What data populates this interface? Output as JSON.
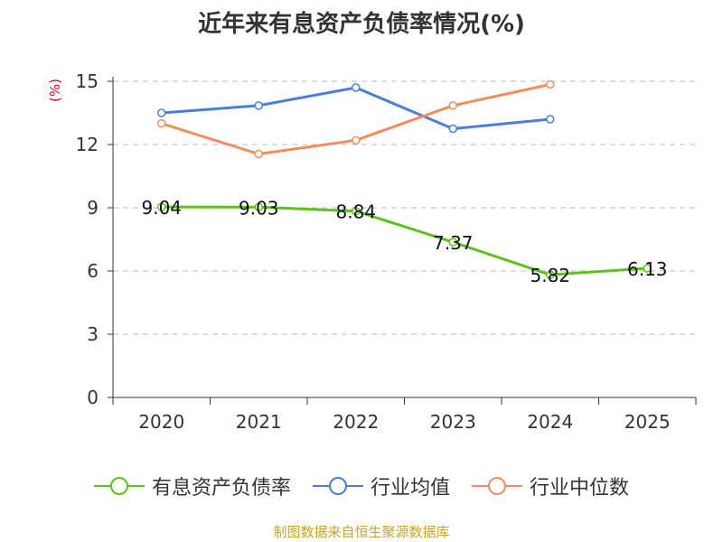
{
  "chart_data": {
    "type": "line",
    "title": "近年来有息资产负债率情况(%)",
    "ylabel": "(%)",
    "xlabel": "",
    "categories": [
      "2020",
      "2021",
      "2022",
      "2023",
      "2024",
      "2025"
    ],
    "ylim": [
      0,
      15
    ],
    "yticks": [
      0,
      3,
      6,
      9,
      12,
      15
    ],
    "grid": true,
    "legend_position": "bottom",
    "series": [
      {
        "name": "有息资产负债率",
        "color": "#5cc21e",
        "values": [
          9.04,
          9.03,
          8.84,
          7.37,
          5.82,
          6.13
        ],
        "labels": [
          "9.04",
          "9.03",
          "8.84",
          "7.37",
          "5.82",
          "6.13"
        ]
      },
      {
        "name": "行业均值",
        "color": "#4a7fd9",
        "values": [
          13.5,
          13.85,
          14.7,
          12.75,
          13.2,
          null
        ]
      },
      {
        "name": "行业中位数",
        "color": "#f28d5b",
        "values": [
          13.0,
          11.55,
          12.2,
          13.85,
          14.85,
          null
        ]
      }
    ]
  },
  "footer": {
    "source": "制图数据来自恒生聚源数据库"
  }
}
